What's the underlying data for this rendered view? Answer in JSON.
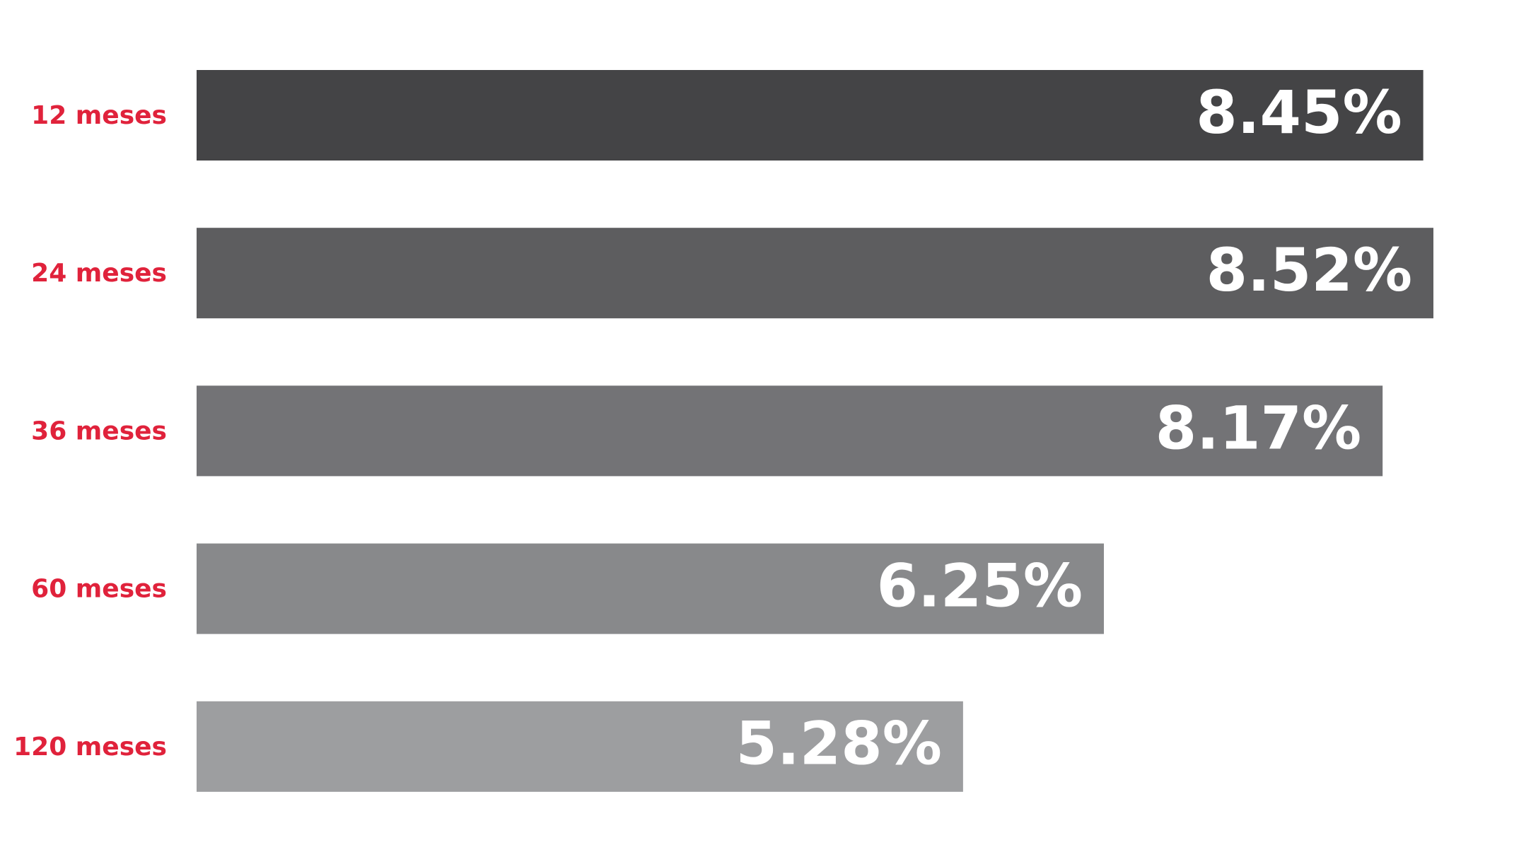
{
  "chart_data": {
    "type": "bar",
    "orientation": "horizontal",
    "categories": [
      "12 meses",
      "24 meses",
      "36 meses",
      "60 meses",
      "120 meses"
    ],
    "values": [
      8.45,
      8.52,
      8.17,
      6.25,
      5.28
    ],
    "value_labels": [
      "8.45%",
      "8.52%",
      "8.17%",
      "6.25%",
      "5.28%"
    ],
    "colors": [
      "#444446",
      "#5d5d5f",
      "#737376",
      "#88898b",
      "#9d9ea0"
    ],
    "label_color": "#e0223b"
  }
}
